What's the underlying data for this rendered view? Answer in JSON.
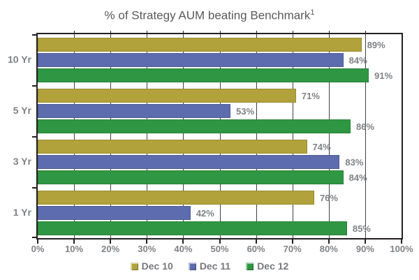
{
  "title": {
    "text": "% of Strategy AUM beating Benchmark",
    "superscript": "1"
  },
  "chart_data": {
    "type": "bar",
    "orientation": "horizontal",
    "categories": [
      "10 Yr",
      "5 Yr",
      "3 Yr",
      "1 Yr"
    ],
    "series": [
      {
        "name": "Dec 10",
        "color": "#B1A23B",
        "values": [
          89,
          71,
          74,
          76
        ]
      },
      {
        "name": "Dec 11",
        "color": "#5D6CAE",
        "values": [
          84,
          53,
          83,
          42
        ]
      },
      {
        "name": "Dec 12",
        "color": "#2F9643",
        "values": [
          91,
          86,
          84,
          85
        ]
      }
    ],
    "value_suffix": "%",
    "xlim": [
      0,
      100
    ],
    "x_ticks": [
      "0%",
      "10%",
      "20%",
      "30%",
      "40%",
      "50%",
      "60%",
      "70%",
      "80%",
      "90%",
      "100%"
    ],
    "gridlines": "vertical, every 10%, drawn behind bars",
    "data_labels": "shown at end of each bar",
    "legend_position": "bottom"
  },
  "colors": {
    "bar_olive": "#B1A23B",
    "bar_blue": "#5D6CAE",
    "bar_green": "#2F9643",
    "axis_border": "#231F20",
    "gridline": "#414142",
    "label_text": "#7F8285",
    "legend_text": "#77787B",
    "title_text": "#58595B",
    "background": "#FFFFFF"
  }
}
